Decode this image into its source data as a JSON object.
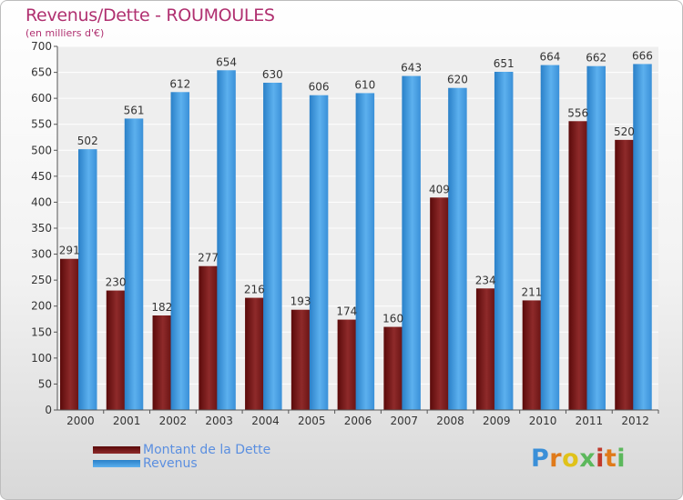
{
  "title": "Revenus/Dette - ROUMOULES",
  "subtitle": "(en milliers d'€)",
  "chart_data": {
    "type": "bar",
    "categories": [
      "2000",
      "2001",
      "2002",
      "2003",
      "2004",
      "2005",
      "2006",
      "2007",
      "2008",
      "2009",
      "2010",
      "2011",
      "2012"
    ],
    "series": [
      {
        "name": "Montant de la Dette",
        "color": "#7a1a1a",
        "values": [
          291,
          230,
          182,
          277,
          216,
          193,
          174,
          160,
          409,
          234,
          211,
          556,
          520
        ]
      },
      {
        "name": "Revenus",
        "color": "#3f9be0",
        "values": [
          502,
          561,
          612,
          654,
          630,
          606,
          610,
          643,
          620,
          651,
          664,
          662,
          666
        ]
      }
    ],
    "ylim": [
      0,
      700
    ],
    "yticks": [
      0,
      50,
      100,
      150,
      200,
      250,
      300,
      350,
      400,
      450,
      500,
      550,
      600,
      650,
      700
    ],
    "grid": true,
    "legend_position": "bottom-left"
  },
  "legend": {
    "debt_label": "Montant de la Dette",
    "revenue_label": "Revenus"
  },
  "logo": {
    "text": "Proxiti"
  }
}
